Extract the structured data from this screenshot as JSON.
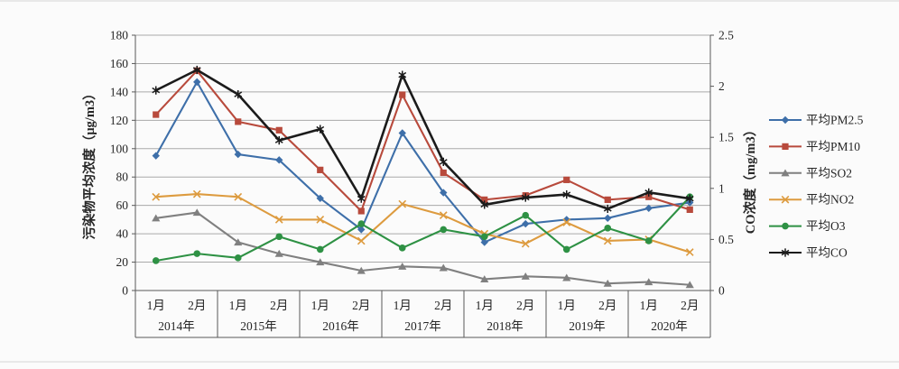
{
  "chart_data": {
    "type": "line",
    "title": "",
    "left_axis": {
      "label": "污染物平均浓度（μg/m3）",
      "min": 0,
      "max": 180,
      "step": 20,
      "tick_labels": [
        "0",
        "20",
        "40",
        "60",
        "80",
        "100",
        "120",
        "140",
        "160",
        "180"
      ]
    },
    "right_axis": {
      "label": "CO浓度（mg/m3）",
      "min": 0,
      "max": 2.5,
      "step": 0.5,
      "tick_labels": [
        "0",
        "0.5",
        "1",
        "1.5",
        "2",
        "2.5"
      ]
    },
    "x_axis": {
      "years": [
        {
          "label": "2014年",
          "months": [
            "1月",
            "2月"
          ]
        },
        {
          "label": "2015年",
          "months": [
            "1月",
            "2月"
          ]
        },
        {
          "label": "2016年",
          "months": [
            "1月",
            "2月"
          ]
        },
        {
          "label": "2017年",
          "months": [
            "1月",
            "2月"
          ]
        },
        {
          "label": "2018年",
          "months": [
            "1月",
            "2月"
          ]
        },
        {
          "label": "2019年",
          "months": [
            "1月",
            "2月"
          ]
        },
        {
          "label": "2020年",
          "months": [
            "1月",
            "2月"
          ]
        }
      ]
    },
    "grid": true,
    "legend_position": "right",
    "series": [
      {
        "name": "平均PM2.5",
        "color": "#3e6fa9",
        "marker": "diamond",
        "axis": "left",
        "values": [
          95,
          147,
          96,
          92,
          65,
          43,
          111,
          69,
          34,
          47,
          50,
          51,
          58,
          62
        ]
      },
      {
        "name": "平均PM10",
        "color": "#b84a3c",
        "marker": "square",
        "axis": "left",
        "values": [
          124,
          155,
          119,
          113,
          85,
          56,
          138,
          83,
          64,
          67,
          78,
          64,
          66,
          57
        ]
      },
      {
        "name": "平均SO2",
        "color": "#808080",
        "marker": "triangle",
        "axis": "left",
        "values": [
          51,
          55,
          34,
          26,
          20,
          14,
          17,
          16,
          8,
          10,
          9,
          5,
          6,
          4
        ]
      },
      {
        "name": "平均NO2",
        "color": "#dd9b3f",
        "marker": "x",
        "axis": "left",
        "values": [
          66,
          68,
          66,
          50,
          50,
          35,
          61,
          53,
          40,
          33,
          48,
          35,
          36,
          27
        ]
      },
      {
        "name": "平均O3",
        "color": "#2e9144",
        "marker": "circle",
        "axis": "left",
        "values": [
          21,
          26,
          23,
          38,
          29,
          47,
          30,
          43,
          38,
          53,
          29,
          44,
          35,
          66
        ]
      },
      {
        "name": "平均CO",
        "color": "#1b1b1b",
        "marker": "star",
        "axis": "right",
        "values": [
          1.96,
          2.16,
          1.92,
          1.47,
          1.58,
          0.9,
          2.11,
          1.26,
          0.84,
          0.91,
          0.94,
          0.8,
          0.96,
          0.9
        ]
      }
    ],
    "colors": {
      "gridline": "#a9a9a9",
      "axis_line": "#595959",
      "text": "#262626"
    }
  }
}
